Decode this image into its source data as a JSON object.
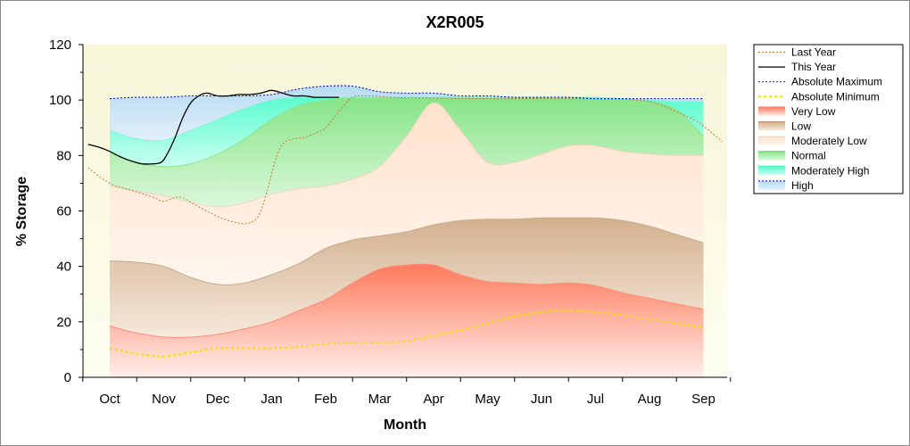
{
  "chart_data": {
    "type": "area",
    "title": "X2R005",
    "xlabel": "Month",
    "ylabel": "% Storage",
    "ylim": [
      0,
      120
    ],
    "yticks": [
      0,
      20,
      40,
      60,
      80,
      100,
      120
    ],
    "categories": [
      "Oct",
      "Nov",
      "Dec",
      "Jan",
      "Feb",
      "Mar",
      "Apr",
      "May",
      "Jun",
      "Jul",
      "Aug",
      "Sep"
    ],
    "grid": false,
    "legend_position": "right",
    "legend": [
      "Last Year",
      "This Year",
      "Absolute Maximum",
      "Absolute Minimum",
      "Very Low",
      "Low",
      "Moderately Low",
      "Normal",
      "Moderately High",
      "High"
    ],
    "colors": {
      "background": "#fafae0",
      "last_year": "#c87832",
      "this_year": "#000000",
      "absolute_maximum": "#0000cc",
      "absolute_minimum": "#e6e600",
      "very_low": "#ff7050",
      "low": "#c8a078",
      "moderately_low": "#ffe6d2",
      "normal": "#8ee68e",
      "moderately_high": "#64ffd2",
      "high": "#a0d2f0"
    },
    "bands": {
      "x": [
        0,
        0.5,
        1,
        1.5,
        2,
        2.5,
        3,
        3.5,
        4,
        4.5,
        5,
        5.5,
        6,
        6.5,
        7,
        7.5,
        8,
        8.5,
        9,
        9.5,
        10,
        10.5,
        11
      ],
      "absolute_minimum": [
        10.5,
        8.5,
        7.5,
        9,
        10.5,
        10.5,
        10.5,
        11,
        12,
        12.5,
        12.5,
        13,
        15,
        17,
        19.5,
        22,
        23.5,
        24,
        23.5,
        22.5,
        21,
        19.5,
        18
      ],
      "very_low_top": [
        18.5,
        16,
        14.5,
        14.5,
        15.5,
        17.5,
        20,
        24,
        28,
        34,
        39,
        40.5,
        40.5,
        37,
        34.5,
        34,
        33.5,
        34,
        33,
        30.5,
        28.5,
        26.5,
        24.5
      ],
      "low_top": [
        42,
        41.5,
        40,
        36,
        33.5,
        34,
        37,
        41,
        46.5,
        49.5,
        51,
        52.5,
        55,
        56.5,
        57,
        57,
        57.5,
        57.5,
        57.5,
        56.5,
        54.5,
        51.5,
        48.5
      ],
      "moderately_low_top": [
        69,
        67,
        65.5,
        63,
        61.5,
        63,
        66,
        68,
        69,
        71.5,
        76,
        87,
        99,
        89,
        77.5,
        77.5,
        80.5,
        83.5,
        83.5,
        81.5,
        80.5,
        80,
        80
      ],
      "normal_top": [
        81,
        77.5,
        76,
        77,
        80.5,
        86,
        93,
        98,
        100,
        101,
        101,
        101,
        101,
        101,
        101,
        101,
        101,
        100.5,
        100,
        100,
        99.5,
        96.5,
        87
      ],
      "moderately_high_top": [
        89,
        86,
        85.5,
        89,
        93,
        97,
        100,
        101,
        101,
        101,
        101,
        101,
        101,
        101,
        101,
        101,
        101,
        101,
        101,
        100.5,
        100,
        99.5,
        99.5
      ],
      "high_top": [
        100.5,
        101,
        101,
        101.5,
        101.5,
        101.5,
        102,
        104,
        105,
        105,
        103,
        102.5,
        102.5,
        101.5,
        101.5,
        101,
        101,
        101,
        100.5,
        100.5,
        100.5,
        100.5,
        100.5
      ],
      "absolute_maximum": [
        100.5,
        101,
        101,
        101.5,
        101.5,
        101.5,
        102,
        104,
        105,
        105,
        103,
        102.5,
        102.5,
        101.5,
        101.5,
        101,
        101,
        101,
        100.5,
        100.5,
        100.5,
        100.5,
        100.5
      ]
    },
    "series": [
      {
        "name": "Last Year",
        "x": [
          -0.4,
          0,
          0.4,
          0.8,
          1,
          1.3,
          1.6,
          2,
          2.3,
          2.55,
          2.75,
          2.9,
          3.05,
          3.2,
          3.4,
          3.6,
          3.8,
          4,
          4.25,
          4.5,
          4.8,
          5.2,
          5.6,
          6,
          6.5,
          7,
          7.5,
          8,
          8.5,
          9,
          9.5,
          10,
          10.3,
          10.6,
          10.9,
          11.1,
          11.35
        ],
        "values": [
          75.5,
          70,
          67.5,
          65,
          63.5,
          65,
          62,
          58,
          56,
          55.5,
          58,
          66,
          77,
          84,
          86,
          86.5,
          88,
          90,
          96,
          101,
          101.5,
          101,
          100.8,
          100.7,
          100.6,
          100.5,
          100.5,
          100.5,
          100.5,
          100.4,
          100.3,
          99.5,
          97.5,
          95,
          92,
          89,
          85
        ]
      },
      {
        "name": "This Year",
        "x": [
          -0.4,
          -0.2,
          0,
          0.2,
          0.4,
          0.6,
          0.8,
          0.95,
          1.05,
          1.2,
          1.35,
          1.5,
          1.65,
          1.8,
          2,
          2.2,
          2.4,
          2.6,
          2.8,
          3,
          3.2,
          3.4,
          3.6,
          3.8,
          4,
          4.25
        ],
        "values": [
          84,
          83,
          81.5,
          79.5,
          78,
          77,
          77,
          77.5,
          80,
          86,
          93.5,
          99,
          101.5,
          102.5,
          101.5,
          101.5,
          102,
          102,
          102.5,
          103.5,
          102.5,
          101.5,
          101.5,
          101,
          101,
          101
        ]
      },
      {
        "name": "Absolute Maximum",
        "x": [
          0,
          0.5,
          1,
          1.5,
          2,
          2.5,
          3,
          3.5,
          4,
          4.5,
          5,
          5.5,
          6,
          6.5,
          7,
          7.5,
          8,
          8.5,
          9,
          9.5,
          10,
          10.5,
          11
        ],
        "values": [
          100.5,
          101,
          101,
          101.5,
          101.5,
          101.5,
          102,
          104,
          105,
          105,
          103,
          102.5,
          102.5,
          101.5,
          101.5,
          101,
          101,
          101,
          100.5,
          100.5,
          100.5,
          100.5,
          100.5
        ]
      },
      {
        "name": "Absolute Minimum",
        "x": [
          0,
          0.5,
          1,
          1.5,
          2,
          2.5,
          3,
          3.5,
          4,
          4.5,
          5,
          5.5,
          6,
          6.5,
          7,
          7.5,
          8,
          8.5,
          9,
          9.5,
          10,
          10.5,
          11
        ],
        "values": [
          10.5,
          8.5,
          7.5,
          9,
          10.5,
          10.5,
          10.5,
          11,
          12,
          12.5,
          12.5,
          13,
          15,
          17,
          19.5,
          22,
          23.5,
          24,
          23.5,
          22.5,
          21,
          19.5,
          18
        ]
      }
    ]
  }
}
